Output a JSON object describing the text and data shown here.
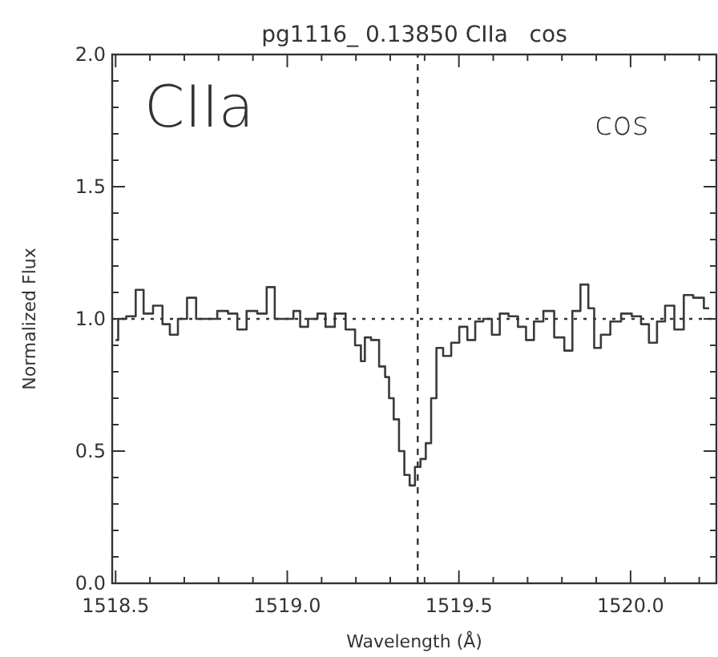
{
  "chart_data": {
    "type": "step",
    "title": "pg1116_ 0.13850 CIIa   cos",
    "xlabel": "Wavelength (Å)",
    "ylabel": "Normalized Flux",
    "annotations": [
      "CIIa",
      "cos"
    ],
    "x": [
      1518.5,
      1518.515,
      1518.547,
      1518.57,
      1518.593,
      1518.625,
      1518.648,
      1518.668,
      1518.695,
      1518.721,
      1518.748,
      1518.78,
      1518.812,
      1518.843,
      1518.866,
      1518.897,
      1518.928,
      1518.952,
      1518.975,
      1519.006,
      1519.03,
      1519.045,
      1519.076,
      1519.1,
      1519.123,
      1519.154,
      1519.186,
      1519.209,
      1519.22,
      1519.232,
      1519.256,
      1519.279,
      1519.291,
      1519.302,
      1519.318,
      1519.333,
      1519.349,
      1519.364,
      1519.38,
      1519.396,
      1519.411,
      1519.427,
      1519.442,
      1519.466,
      1519.489,
      1519.513,
      1519.536,
      1519.559,
      1519.583,
      1519.609,
      1519.629,
      1519.66,
      1519.684,
      1519.707,
      1519.73,
      1519.762,
      1519.793,
      1519.821,
      1519.84,
      1519.868,
      1519.886,
      1519.902,
      1519.925,
      1519.957,
      1519.988,
      1520.019,
      1520.042,
      1520.065,
      1520.089,
      1520.112,
      1520.143,
      1520.167,
      1520.198,
      1520.229
    ],
    "series": [
      {
        "color": "#3a3a3a",
        "values": [
          0.92,
          1.0,
          1.01,
          1.11,
          1.02,
          1.05,
          0.98,
          0.94,
          1.0,
          1.08,
          1.0,
          1.0,
          1.03,
          1.02,
          0.96,
          1.03,
          1.02,
          1.12,
          1.0,
          1.0,
          1.03,
          0.97,
          1.0,
          1.02,
          0.97,
          1.02,
          0.96,
          0.9,
          0.84,
          0.93,
          0.92,
          0.82,
          0.78,
          0.7,
          0.62,
          0.5,
          0.41,
          0.37,
          0.44,
          0.47,
          0.53,
          0.7,
          0.89,
          0.86,
          0.91,
          0.97,
          0.92,
          0.99,
          1.0,
          0.94,
          1.02,
          1.01,
          0.97,
          0.92,
          0.99,
          1.03,
          0.93,
          0.88,
          1.03,
          1.13,
          1.04,
          0.89,
          0.94,
          0.99,
          1.02,
          1.01,
          0.98,
          0.91,
          0.99,
          1.05,
          0.96,
          1.09,
          1.08,
          1.04
        ]
      }
    ],
    "xlim": [
      1518.49,
      1520.25
    ],
    "xticks": [
      {
        "value": 1518.5,
        "label": "1518.5"
      },
      {
        "value": 1518.6,
        "label": null
      },
      {
        "value": 1518.7,
        "label": null
      },
      {
        "value": 1518.8,
        "label": null
      },
      {
        "value": 1518.9,
        "label": null
      },
      {
        "value": 1519.0,
        "label": "1519.0"
      },
      {
        "value": 1519.1,
        "label": null
      },
      {
        "value": 1519.2,
        "label": null
      },
      {
        "value": 1519.3,
        "label": null
      },
      {
        "value": 1519.4,
        "label": null
      },
      {
        "value": 1519.5,
        "label": "1519.5"
      },
      {
        "value": 1519.6,
        "label": null
      },
      {
        "value": 1519.7,
        "label": null
      },
      {
        "value": 1519.8,
        "label": null
      },
      {
        "value": 1519.9,
        "label": null
      },
      {
        "value": 1520.0,
        "label": "1520.0"
      },
      {
        "value": 1520.1,
        "label": null
      },
      {
        "value": 1520.2,
        "label": null
      }
    ],
    "ylim": [
      0,
      2
    ],
    "yticks": [
      {
        "value": 0,
        "label": "0.0"
      },
      {
        "value": 0.1,
        "label": null
      },
      {
        "value": 0.2,
        "label": null
      },
      {
        "value": 0.3,
        "label": null
      },
      {
        "value": 0.4,
        "label": null
      },
      {
        "value": 0.5,
        "label": "0.5"
      },
      {
        "value": 0.6,
        "label": null
      },
      {
        "value": 0.7,
        "label": null
      },
      {
        "value": 0.8,
        "label": null
      },
      {
        "value": 0.9,
        "label": null
      },
      {
        "value": 1.0,
        "label": "1.0"
      },
      {
        "value": 1.1,
        "label": null
      },
      {
        "value": 1.2,
        "label": null
      },
      {
        "value": 1.3,
        "label": null
      },
      {
        "value": 1.4,
        "label": null
      },
      {
        "value": 1.5,
        "label": "1.5"
      },
      {
        "value": 1.6,
        "label": null
      },
      {
        "value": 1.7,
        "label": null
      },
      {
        "value": 1.8,
        "label": null
      },
      {
        "value": 1.9,
        "label": null
      },
      {
        "value": 2.0,
        "label": "2.0"
      }
    ],
    "ref_lines": [
      {
        "axis": "y",
        "value": 1.0,
        "line_style": "dotted"
      },
      {
        "axis": "x",
        "value": 1519.38,
        "line_style": "dashed"
      }
    ],
    "grid": false
  }
}
